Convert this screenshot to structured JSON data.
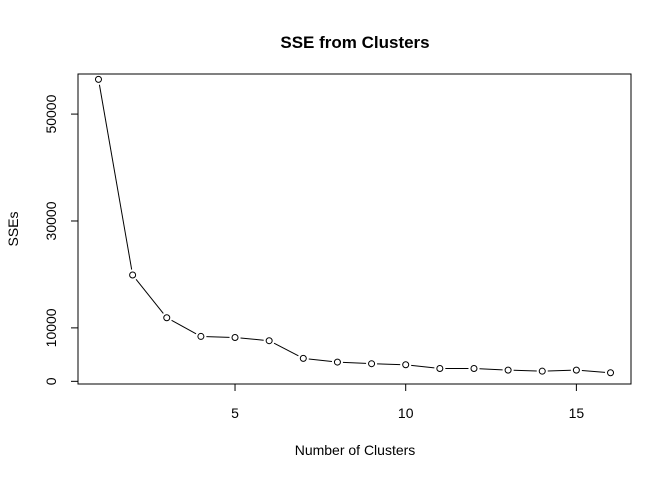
{
  "chart_data": {
    "type": "line",
    "title": "SSE from Clusters",
    "xlabel": "Number of Clusters",
    "ylabel": "SSEs",
    "xlim": [
      0.4,
      16.6
    ],
    "ylim": [
      -500,
      57500
    ],
    "xticks": [
      5,
      10,
      15
    ],
    "yticks": [
      0,
      10000,
      30000,
      50000
    ],
    "grid": false,
    "legend": "none",
    "marker": "open-circle",
    "series": [
      {
        "x": [
          1,
          2,
          3,
          4,
          5,
          6,
          7,
          8,
          9,
          10,
          11,
          12,
          13,
          14,
          15,
          16
        ],
        "y": [
          56500,
          19900,
          11900,
          8400,
          8200,
          7600,
          4300,
          3600,
          3300,
          3100,
          2400,
          2400,
          2100,
          1900,
          2100,
          1600
        ]
      }
    ]
  }
}
